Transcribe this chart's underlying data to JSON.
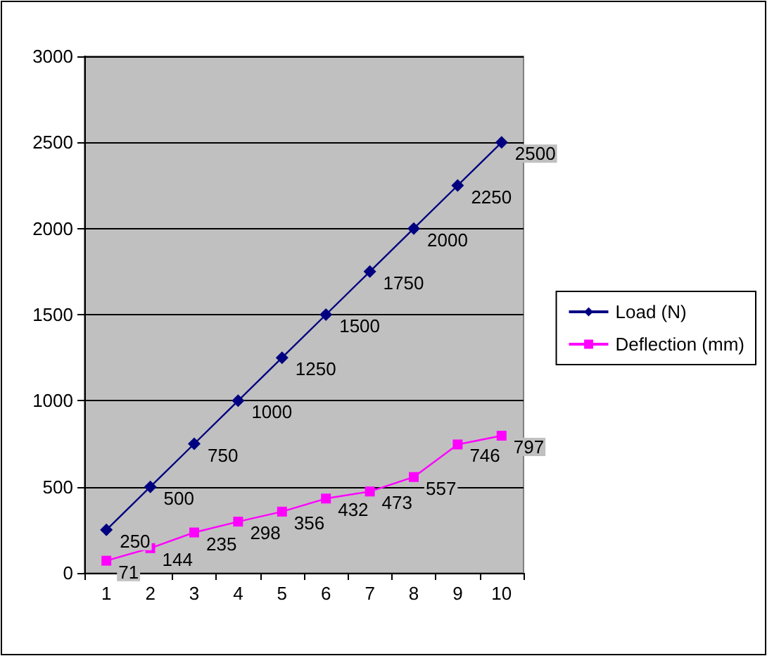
{
  "chart_data": {
    "type": "line",
    "categories": [
      "1",
      "2",
      "3",
      "4",
      "5",
      "6",
      "7",
      "8",
      "9",
      "10"
    ],
    "series": [
      {
        "name": "Load (N)",
        "color": "#000080",
        "marker": "diamond",
        "values": [
          250,
          500,
          750,
          1000,
          1250,
          1500,
          1750,
          2000,
          2250,
          2500
        ]
      },
      {
        "name": "Deflection (mm)",
        "color": "#ff00ff",
        "marker": "square",
        "values": [
          71,
          144,
          235,
          298,
          356,
          432,
          473,
          557,
          746,
          797
        ]
      }
    ],
    "ylim": [
      0,
      3000
    ],
    "yticks": [
      0,
      500,
      1000,
      1500,
      2000,
      2500,
      3000
    ],
    "grid": "y",
    "legend": "right",
    "data_labels": true
  }
}
